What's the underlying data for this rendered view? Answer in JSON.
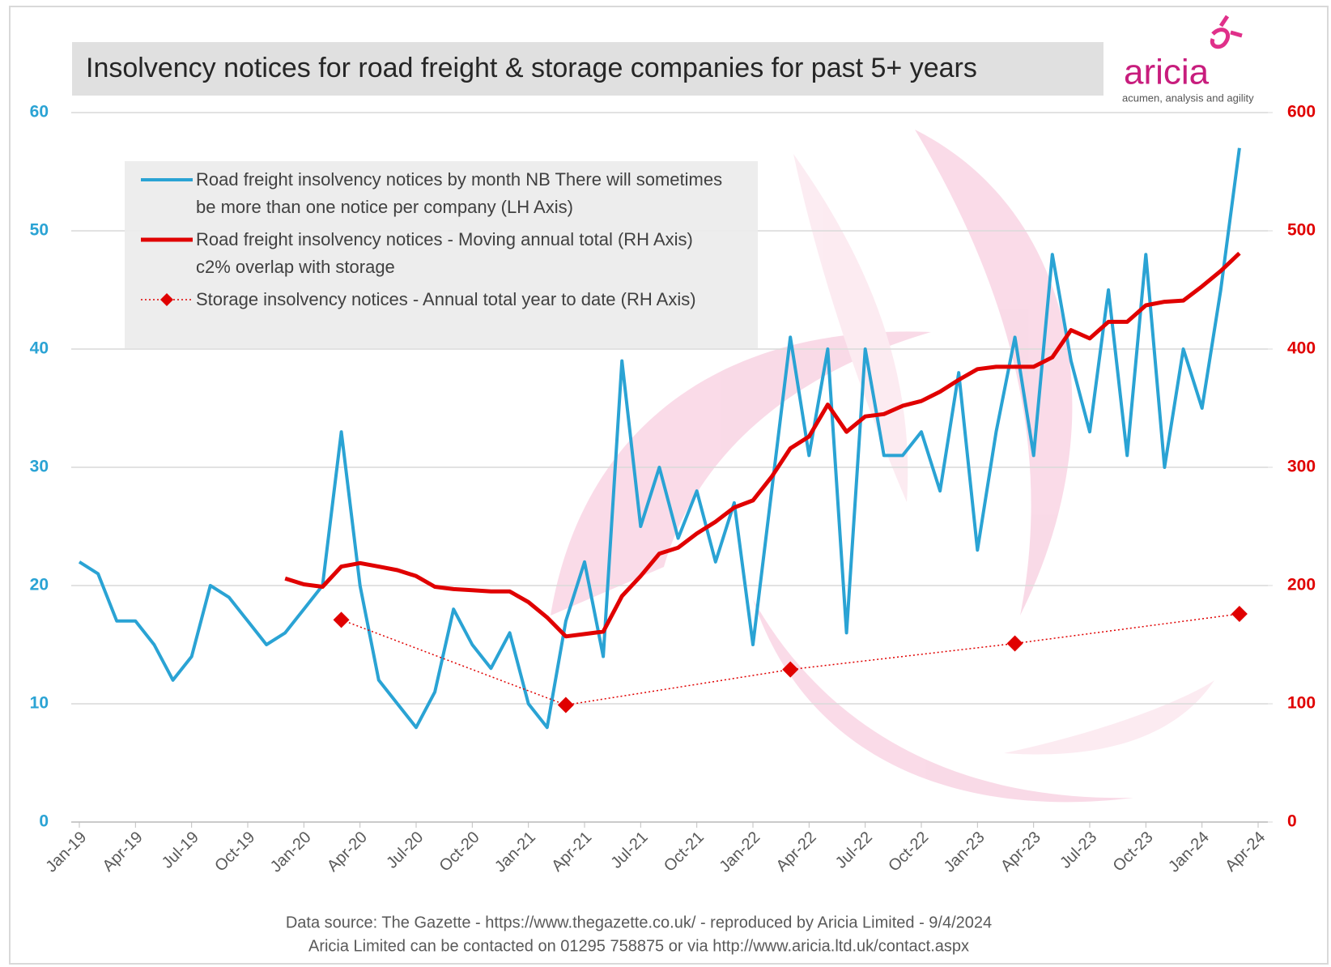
{
  "chart_data": {
    "type": "line",
    "title": "Insolvency notices for road freight & storage companies for past 5+ years",
    "logo": "aricia",
    "logo_tagline": "acumen, analysis and agility",
    "footer": [
      "Data source: The Gazette - https://www.thegazette.co.uk/ - reproduced by Aricia Limited - 9/4/2024",
      "Aricia Limited can be contacted on 01295 758875 or via http://www.aricia.ltd.uk/contact.aspx"
    ],
    "categories": [
      "Jan-19",
      null,
      null,
      "Apr-19",
      null,
      null,
      "Jul-19",
      null,
      null,
      "Oct-19",
      null,
      null,
      "Jan-20",
      null,
      null,
      "Apr-20",
      null,
      null,
      "Jul-20",
      null,
      null,
      "Oct-20",
      null,
      null,
      "Jan-21",
      null,
      null,
      "Apr-21",
      null,
      null,
      "Jul-21",
      null,
      null,
      "Oct-21",
      null,
      null,
      "Jan-22",
      null,
      null,
      "Apr-22",
      null,
      null,
      "Jul-22",
      null,
      null,
      "Oct-22",
      null,
      null,
      "Jan-23",
      null,
      null,
      "Apr-23",
      null,
      null,
      "Jul-23",
      null,
      null,
      "Oct-23",
      null,
      null,
      "Jan-24",
      null,
      null,
      "Apr-24"
    ],
    "series": [
      {
        "name": "Road freight insolvency notices by month NB There will sometimes be more than one notice per company (LH Axis)",
        "color": "#2aa3d4",
        "axis": "y",
        "style": "solid",
        "values": [
          22,
          21,
          17,
          17,
          15,
          12,
          14,
          20,
          19,
          17,
          15,
          16,
          18,
          20,
          33,
          20,
          12,
          10,
          8,
          11,
          18,
          15,
          13,
          16,
          10,
          8,
          17,
          22,
          14,
          39,
          25,
          30,
          24,
          28,
          22,
          27,
          15,
          28,
          41,
          31,
          40,
          16,
          40,
          31,
          31,
          33,
          28,
          38,
          23,
          33,
          41,
          31,
          48,
          39,
          33,
          45,
          31,
          48,
          30,
          40,
          35,
          45,
          57,
          null
        ]
      },
      {
        "name": "Road freight insolvency notices - Moving annual total (RH Axis) c2% overlap with storage",
        "color": "#e00000",
        "axis": "y2",
        "style": "thick",
        "values": [
          null,
          null,
          null,
          null,
          null,
          null,
          null,
          null,
          null,
          null,
          null,
          206,
          201,
          199,
          216,
          219,
          216,
          213,
          208,
          199,
          197,
          196,
          195,
          195,
          186,
          173,
          157,
          159,
          161,
          191,
          208,
          227,
          232,
          244,
          254,
          266,
          272,
          292,
          316,
          326,
          353,
          330,
          343,
          345,
          352,
          356,
          364,
          374,
          383,
          385,
          385,
          385,
          393,
          416,
          409,
          423,
          423,
          437,
          440,
          441,
          453,
          466,
          481,
          null
        ]
      },
      {
        "name": "Storage insolvency notices - Annual total year to date (RH Axis)",
        "color": "#e00000",
        "axis": "y2",
        "style": "dotted",
        "marker": "diamond",
        "connect_gaps": true,
        "values": [
          null,
          null,
          null,
          null,
          null,
          null,
          null,
          null,
          null,
          null,
          null,
          null,
          null,
          null,
          171,
          null,
          null,
          null,
          null,
          null,
          null,
          null,
          null,
          null,
          null,
          null,
          99,
          null,
          null,
          null,
          null,
          null,
          null,
          null,
          null,
          null,
          null,
          null,
          129,
          null,
          null,
          null,
          null,
          null,
          null,
          null,
          null,
          null,
          null,
          null,
          151,
          null,
          null,
          null,
          null,
          null,
          null,
          null,
          null,
          null,
          null,
          null,
          176,
          null
        ]
      }
    ],
    "ylim": [
      0,
      60
    ],
    "yticks": [
      0,
      10,
      20,
      30,
      40,
      50,
      60
    ],
    "y2lim": [
      0,
      600
    ],
    "y2ticks": [
      0,
      100,
      200,
      300,
      400,
      500,
      600
    ],
    "grid": true
  }
}
